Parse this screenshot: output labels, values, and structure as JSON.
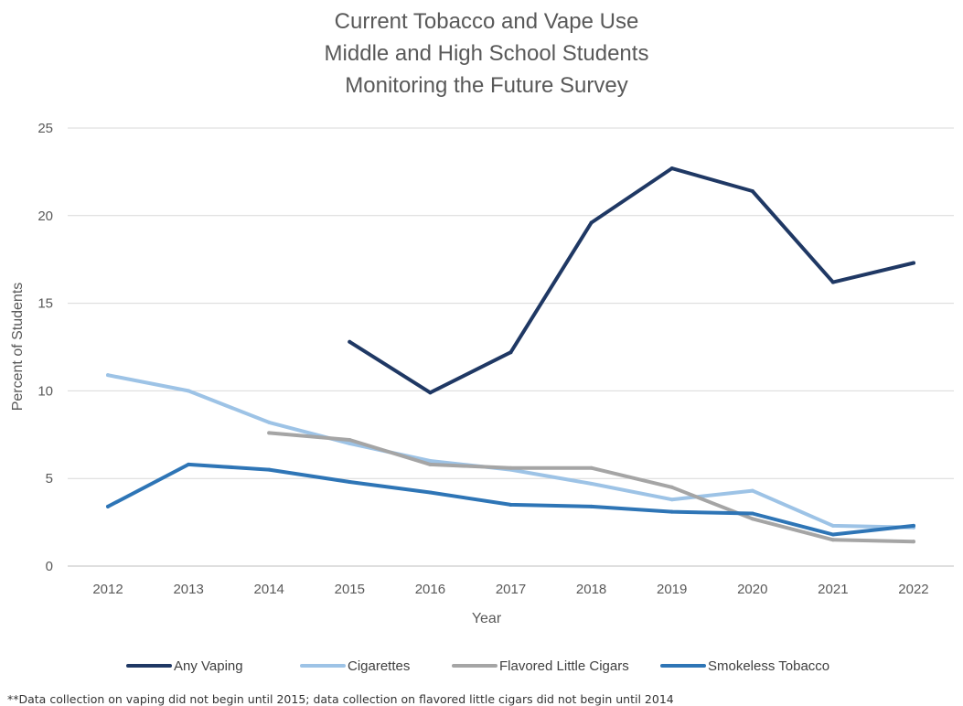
{
  "chart_data": {
    "type": "line",
    "title": [
      "Current Tobacco and Vape Use",
      "Middle and High School Students",
      "Monitoring the Future Survey"
    ],
    "xlabel": "Year",
    "ylabel": "Percent of Students",
    "x": [
      "2012",
      "2013",
      "2014",
      "2015",
      "2016",
      "2017",
      "2018",
      "2019",
      "2020",
      "2021",
      "2022"
    ],
    "ylim": [
      0,
      25
    ],
    "yticks": [
      "0",
      "5",
      "10",
      "15",
      "20",
      "25"
    ],
    "grid": true,
    "legend_position": "bottom",
    "series": [
      {
        "name": "Any Vaping",
        "color": "#1f3864",
        "values": [
          null,
          null,
          null,
          12.8,
          9.9,
          12.2,
          19.6,
          22.7,
          21.4,
          16.2,
          17.3
        ]
      },
      {
        "name": "Cigarettes",
        "color": "#9dc3e6",
        "values": [
          10.9,
          10.0,
          8.2,
          7.0,
          6.0,
          5.5,
          4.7,
          3.8,
          4.3,
          2.3,
          2.2
        ]
      },
      {
        "name": "Flavored Little Cigars",
        "color": "#a5a5a5",
        "values": [
          null,
          null,
          7.6,
          7.2,
          5.8,
          5.6,
          5.6,
          4.5,
          2.7,
          1.5,
          1.4
        ]
      },
      {
        "name": "Smokeless Tobacco",
        "color": "#2e75b6",
        "values": [
          3.4,
          5.8,
          5.5,
          4.8,
          4.2,
          3.5,
          3.4,
          3.1,
          3.0,
          1.8,
          2.3
        ]
      }
    ],
    "footnote": "**Data collection on vaping did not begin until 2015; data collection on flavored little cigars did not begin until 2014"
  }
}
